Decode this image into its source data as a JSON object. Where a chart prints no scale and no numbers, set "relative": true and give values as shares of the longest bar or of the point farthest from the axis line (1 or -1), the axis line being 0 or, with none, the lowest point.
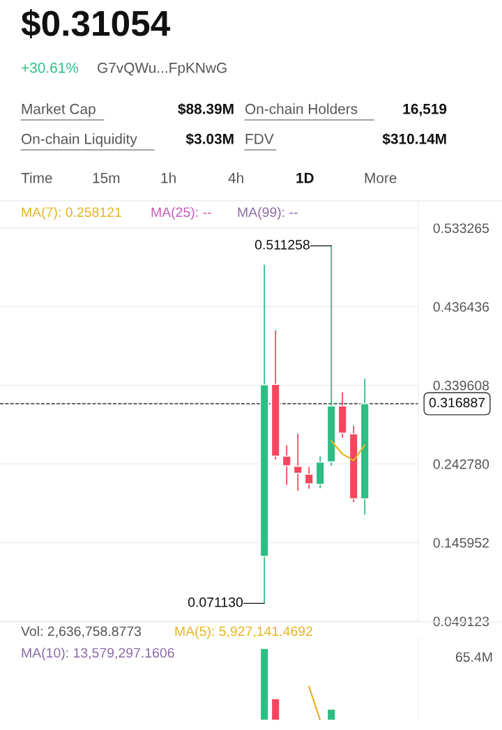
{
  "chart_data": [
    {
      "type": "candlestick",
      "title": "$0.31054",
      "categories": [
        null,
        null,
        null,
        null,
        null,
        null,
        null,
        null,
        null,
        null
      ],
      "ohlc": [
        [
          0.1289,
          0.4879,
          0.07113,
          0.3402
        ],
        [
          0.3408,
          0.4071,
          0.2483,
          0.2523
        ],
        [
          0.2523,
          0.2659,
          0.2168,
          0.2405
        ],
        [
          0.2399,
          0.28,
          0.2097,
          0.2313
        ],
        [
          0.2301,
          0.239,
          0.2122,
          0.2183
        ],
        [
          0.2177,
          0.2523,
          0.2128,
          0.2449
        ],
        [
          0.2452,
          0.511258,
          0.2405,
          0.314
        ],
        [
          0.314,
          0.3309,
          0.2751,
          0.2807
        ],
        [
          0.2797,
          0.2899,
          0.1958,
          0.1998
        ],
        [
          0.1998,
          0.3476,
          0.1804,
          0.316887
        ]
      ],
      "colors": [
        "#2ebd85",
        "#f6465d",
        "#f6465d",
        "#f6465d",
        "#f6465d",
        "#2ebd85",
        "#2ebd85",
        "#f6465d",
        "#f6465d",
        "#2ebd85"
      ],
      "series": [
        {
          "name": "MA(7): 0.258121",
          "type": "line",
          "color": "#e6b422",
          "values": [
            null,
            null,
            null,
            null,
            null,
            null,
            0.271,
            0.255,
            0.247,
            0.266
          ]
        }
      ],
      "ylim": [
        0.049123,
        0.565
      ],
      "yticks": [
        0.049123,
        0.145952,
        {
          "value": 0.24278,
          "label": "0.242780"
        },
        0.339608,
        0.436436,
        0.533265
      ],
      "grid": "y",
      "ref_lines": [
        {
          "axis": "y",
          "value": 0.316887,
          "label": "0.316887",
          "line_style": "dashed"
        }
      ],
      "annotations": [
        "+30.61%",
        "G7vQWu...FpKNwG",
        "Market Cap",
        "$88.39M",
        "On-chain Holders",
        "16,519",
        "On-chain Liquidity",
        "$3.03M",
        "FDV",
        "$310.14M",
        "Time",
        "15m",
        "1h",
        "4h",
        "1D",
        "More",
        "MA(25): --",
        "MA(99): --",
        "0.511258",
        "0.071130"
      ]
    },
    {
      "type": "bar",
      "relative": true,
      "categories": [
        null,
        null,
        null,
        null,
        null,
        null,
        null,
        null,
        null,
        null
      ],
      "values": [
        1,
        0.3,
        null,
        null,
        null,
        null,
        0.155,
        null,
        null,
        null
      ],
      "colors": [
        "#2ebd85",
        "#f6465d",
        "#f6465d",
        "#f6465d",
        "#f6465d",
        "#2ebd85",
        "#2ebd85",
        "#f6465d",
        "#f6465d",
        "#2ebd85"
      ],
      "series": [
        {
          "name": "MA(5): 5,927,141.4692",
          "type": "line",
          "color": "#e6b422",
          "values": [
            null,
            null,
            null,
            null,
            0.47,
            0.0,
            null,
            null,
            null,
            null
          ]
        }
      ],
      "annotations": [
        "Vol: 2,636,758.8773",
        "MA(10): 13,579,297.1606",
        "65.4M"
      ]
    }
  ]
}
